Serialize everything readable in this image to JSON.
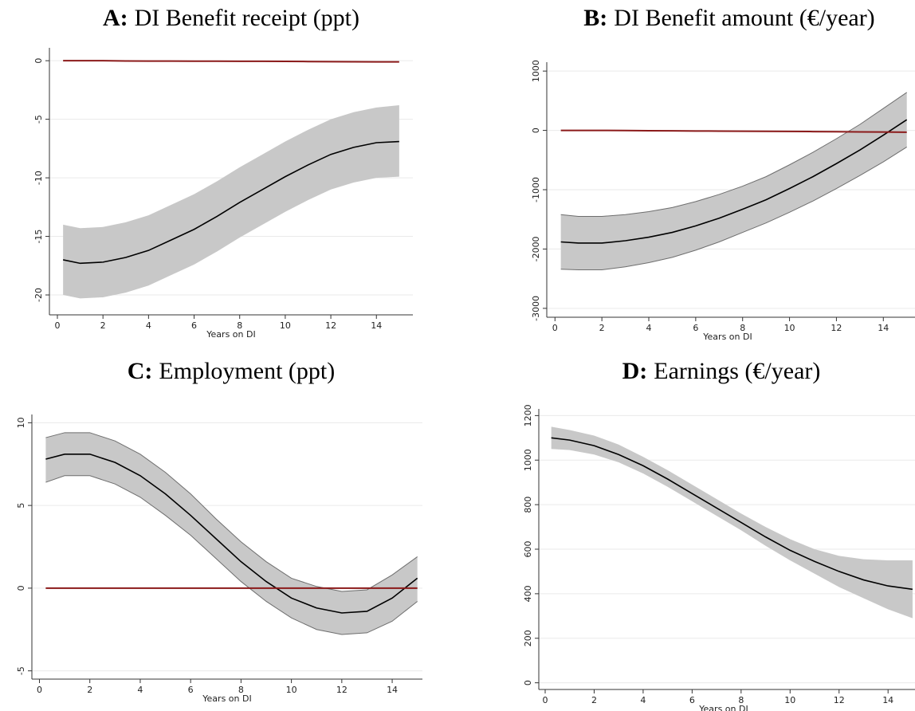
{
  "chart_data": [
    {
      "type": "line",
      "panel": "A:",
      "title": "DI Benefit receipt (ppt)",
      "xlabel": "Years on DI",
      "x": [
        0.25,
        1,
        2,
        3,
        4,
        5,
        6,
        7,
        8,
        9,
        10,
        11,
        12,
        13,
        14,
        15
      ],
      "xlim": [
        -0.35,
        15.6
      ],
      "xticks": [
        0,
        2,
        4,
        6,
        8,
        10,
        12,
        14
      ],
      "ylim": [
        -21.7,
        1.1
      ],
      "yticks": [
        0,
        -5,
        -10,
        -15,
        -20
      ],
      "grid": true,
      "band": {
        "lower": [
          -20,
          -20.3,
          -20.2,
          -19.8,
          -19.2,
          -18.3,
          -17.4,
          -16.3,
          -15.1,
          -14,
          -12.9,
          -11.9,
          -11,
          -10.4,
          -10,
          -9.9
        ],
        "upper": [
          -14,
          -14.3,
          -14.2,
          -13.8,
          -13.2,
          -12.3,
          -11.4,
          -10.3,
          -9.1,
          -8,
          -6.9,
          -5.9,
          -5,
          -4.4,
          -4,
          -3.8
        ],
        "color": "#c8c8c8",
        "edge_color": null
      },
      "series": [
        {
          "values": [
            -17,
            -17.3,
            -17.2,
            -16.8,
            -16.2,
            -15.3,
            -14.4,
            -13.3,
            -12.1,
            -11,
            -9.9,
            -8.9,
            -8,
            -7.4,
            -7,
            -6.9
          ],
          "color": "#000000"
        },
        {
          "values": [
            0,
            0,
            0,
            -0.02,
            -0.03,
            -0.03,
            -0.04,
            -0.04,
            -0.05,
            -0.05,
            -0.06,
            -0.07,
            -0.08,
            -0.09,
            -0.1,
            -0.1
          ],
          "color": "#8b1a1a"
        }
      ]
    },
    {
      "type": "line",
      "panel": "B:",
      "title": "DI Benefit amount (€/year)",
      "xlabel": "Years on DI",
      "x": [
        0.25,
        1,
        2,
        3,
        4,
        5,
        6,
        7,
        8,
        9,
        10,
        11,
        12,
        13,
        14,
        15
      ],
      "xlim": [
        -0.35,
        15.35
      ],
      "xticks": [
        0,
        2,
        4,
        6,
        8,
        10,
        12,
        14
      ],
      "ylim": [
        -3150,
        1150
      ],
      "yticks": [
        1000,
        0,
        -1000,
        -2000,
        -3000
      ],
      "grid": true,
      "band": {
        "lower": [
          -2340,
          -2350,
          -2350,
          -2300,
          -2230,
          -2140,
          -2020,
          -1880,
          -1720,
          -1560,
          -1380,
          -1190,
          -980,
          -760,
          -530,
          -280
        ],
        "upper": [
          -1420,
          -1450,
          -1450,
          -1420,
          -1370,
          -1300,
          -1200,
          -1080,
          -940,
          -780,
          -580,
          -370,
          -140,
          100,
          370,
          640
        ],
        "color": "#c8c8c8",
        "edge_color": "#6e6e6e"
      },
      "series": [
        {
          "values": [
            -1880,
            -1900,
            -1900,
            -1860,
            -1800,
            -1720,
            -1610,
            -1480,
            -1330,
            -1170,
            -980,
            -780,
            -560,
            -330,
            -80,
            180
          ],
          "color": "#000000"
        },
        {
          "values": [
            0,
            0,
            0,
            -2,
            -5,
            -8,
            -10,
            -12,
            -14,
            -16,
            -18,
            -20,
            -22,
            -25,
            -28,
            -30
          ],
          "color": "#8b1a1a"
        }
      ]
    },
    {
      "type": "line",
      "panel": "C:",
      "title": "Employment (ppt)",
      "xlabel": "Years on DI",
      "x": [
        0.25,
        1,
        2,
        3,
        4,
        5,
        6,
        7,
        8,
        9,
        10,
        11,
        12,
        13,
        14,
        15
      ],
      "xlim": [
        -0.3,
        15.2
      ],
      "xticks": [
        0,
        2,
        4,
        6,
        8,
        10,
        12,
        14
      ],
      "ylim": [
        -5.5,
        10.5
      ],
      "yticks": [
        10,
        5,
        0,
        -5
      ],
      "grid": true,
      "band": {
        "lower": [
          6.4,
          6.8,
          6.8,
          6.3,
          5.5,
          4.4,
          3.2,
          1.8,
          0.4,
          -0.8,
          -1.8,
          -2.5,
          -2.8,
          -2.7,
          -2,
          -0.8
        ],
        "upper": [
          9.1,
          9.4,
          9.4,
          8.9,
          8.1,
          7,
          5.7,
          4.2,
          2.8,
          1.6,
          0.6,
          0.1,
          -0.2,
          -0.1,
          0.8,
          1.9
        ],
        "color": "#c8c8c8",
        "edge_color": "#6e6e6e"
      },
      "series": [
        {
          "values": [
            7.8,
            8.1,
            8.1,
            7.6,
            6.8,
            5.7,
            4.4,
            3,
            1.6,
            0.4,
            -0.6,
            -1.2,
            -1.5,
            -1.4,
            -0.6,
            0.6
          ],
          "color": "#000000"
        },
        {
          "values": [
            0,
            0,
            0,
            0,
            0,
            0,
            0,
            0,
            0,
            0,
            0,
            0,
            0,
            0,
            0,
            0
          ],
          "color": "#8b1a1a"
        }
      ]
    },
    {
      "type": "line",
      "panel": "D:",
      "title": "Earnings (€/year)",
      "xlabel": "Years on DI",
      "x": [
        0.25,
        1,
        2,
        3,
        4,
        5,
        6,
        7,
        8,
        9,
        10,
        11,
        12,
        13,
        14,
        15
      ],
      "xlim": [
        -0.26,
        15.1
      ],
      "xticks": [
        0,
        2,
        4,
        6,
        8,
        10,
        12,
        14
      ],
      "ylim": [
        -30,
        1230
      ],
      "yticks": [
        0,
        200,
        400,
        600,
        800,
        1000,
        1200
      ],
      "grid": true,
      "band": {
        "lower": [
          1050,
          1045,
          1025,
          990,
          940,
          880,
          815,
          750,
          685,
          615,
          550,
          490,
          430,
          380,
          330,
          290
        ],
        "upper": [
          1150,
          1135,
          1110,
          1070,
          1015,
          955,
          890,
          825,
          760,
          700,
          645,
          600,
          570,
          555,
          550,
          550
        ],
        "color": "#c8c8c8",
        "edge_color": null
      },
      "series": [
        {
          "values": [
            1100,
            1090,
            1065,
            1025,
            975,
            915,
            850,
            785,
            720,
            655,
            595,
            545,
            500,
            462,
            435,
            420
          ],
          "color": "#000000"
        }
      ]
    }
  ]
}
